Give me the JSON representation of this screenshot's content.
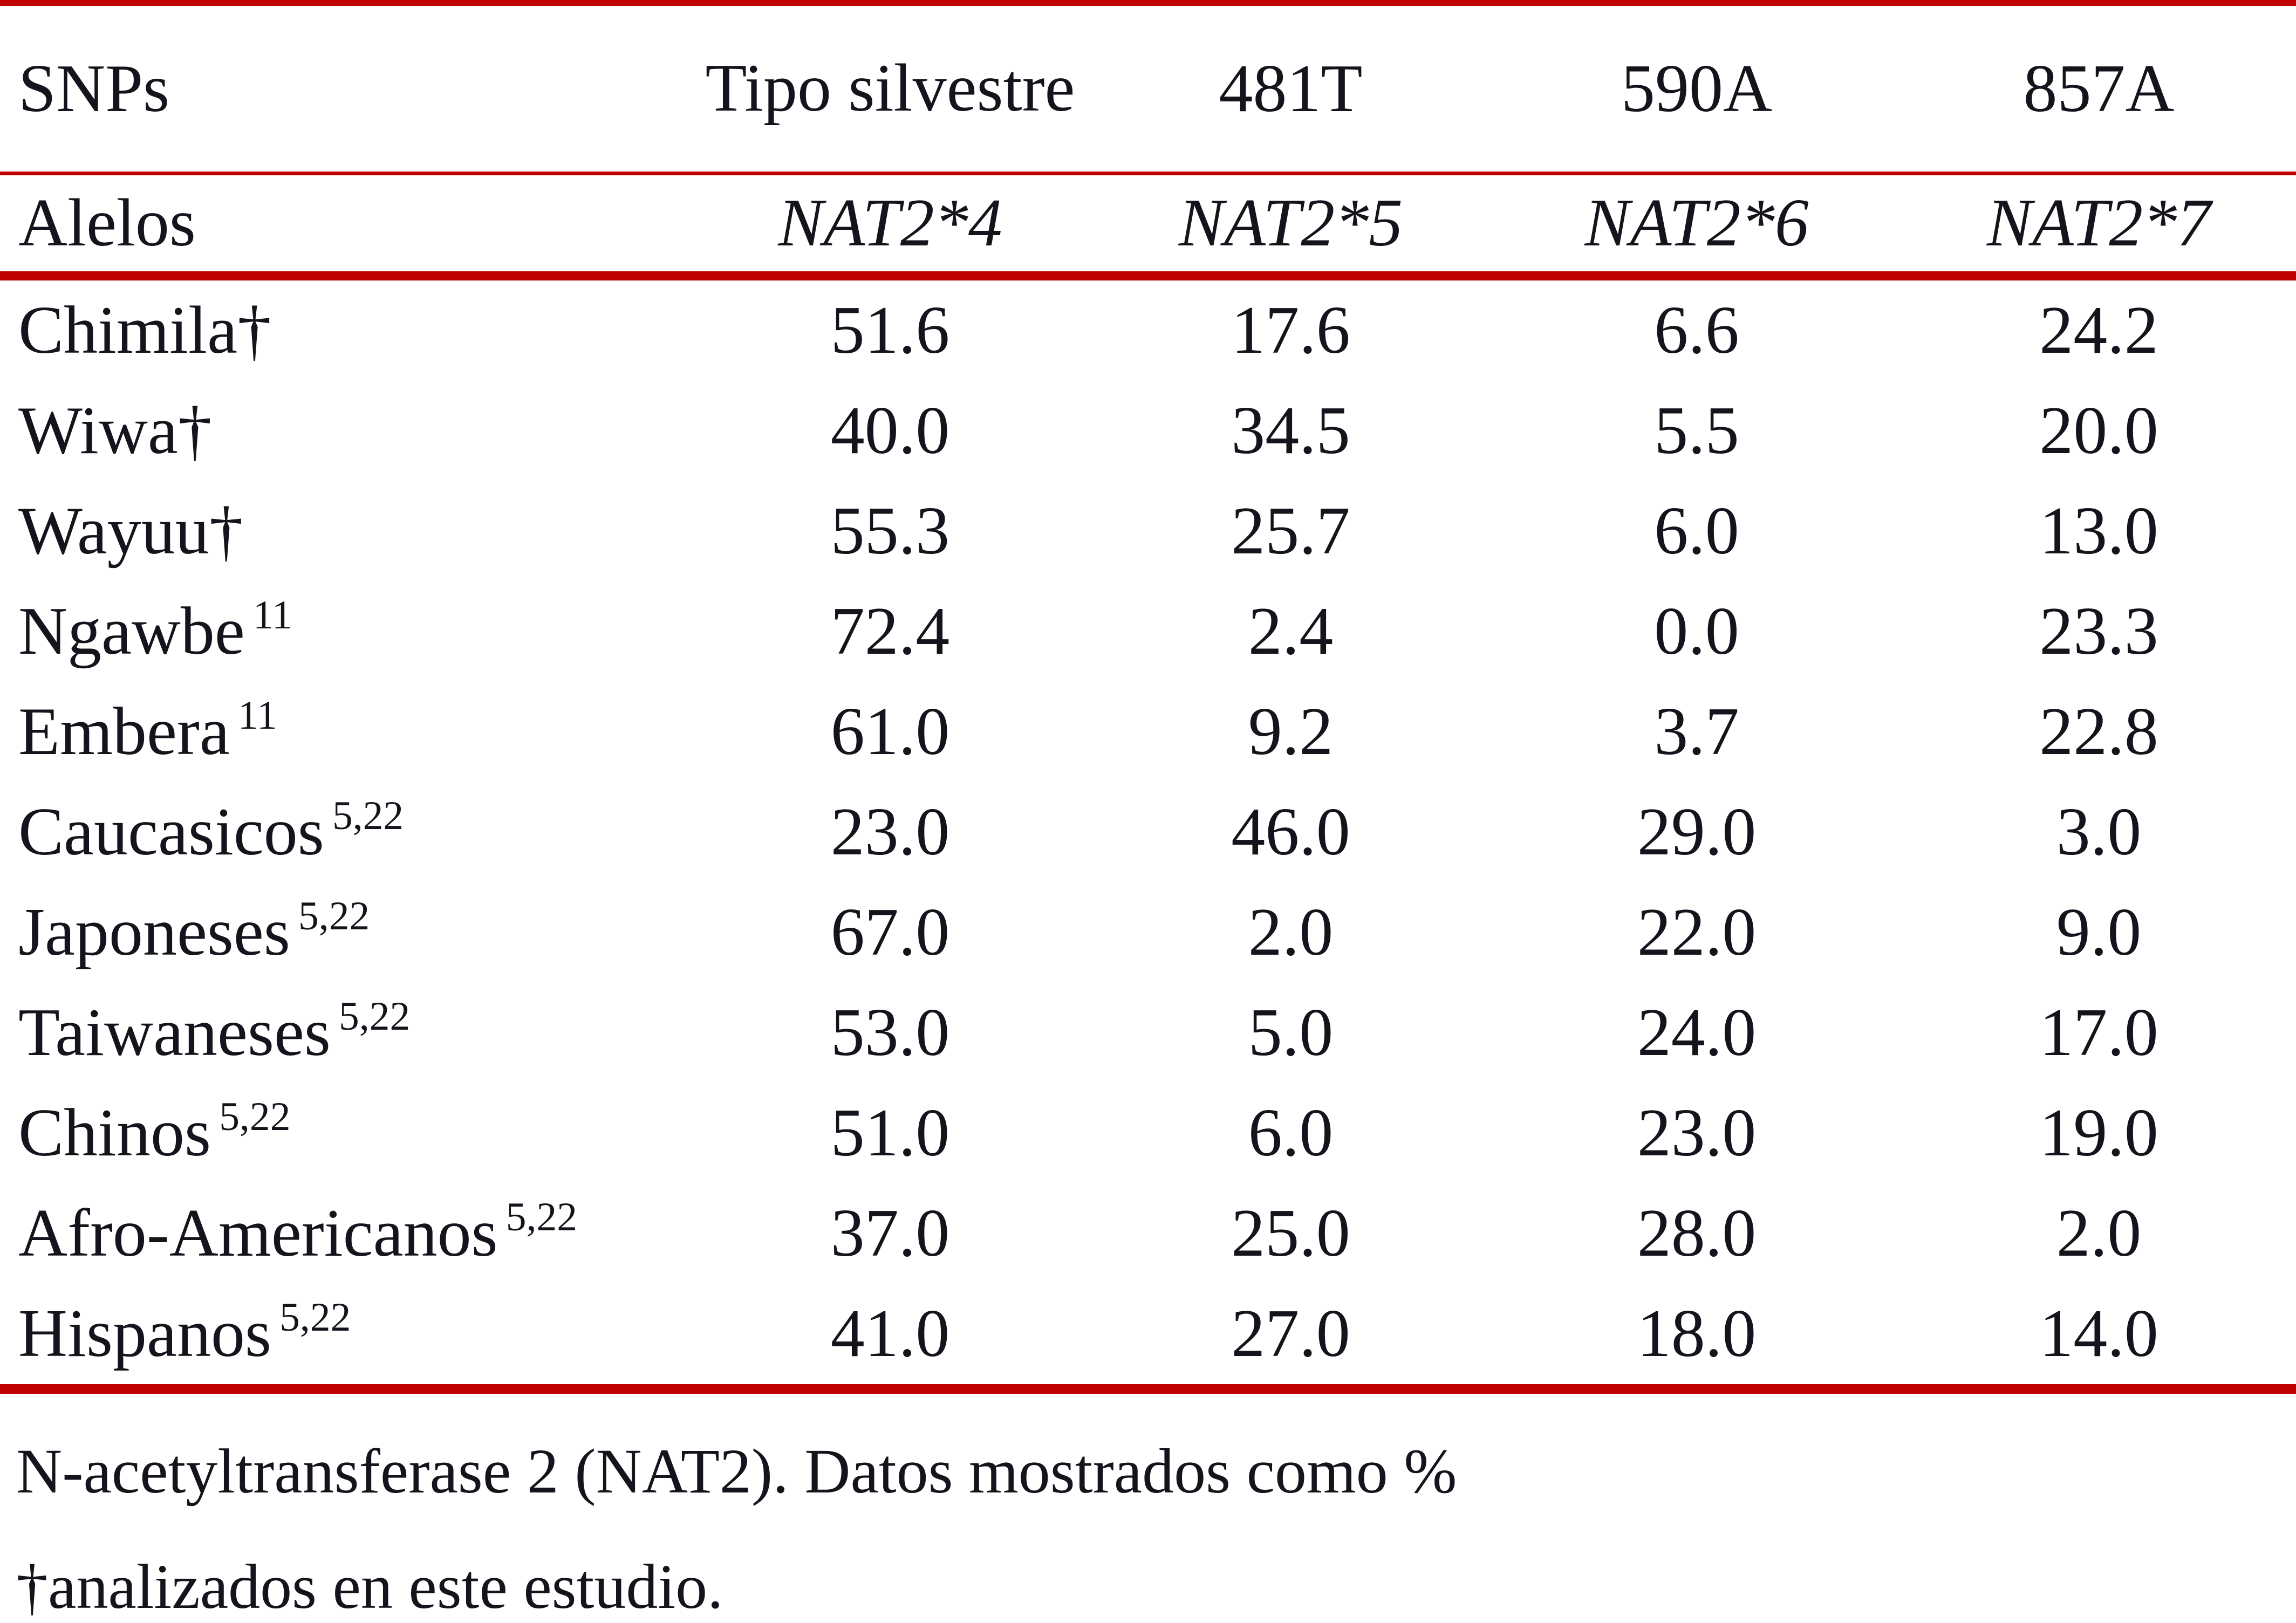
{
  "accent_red": "#c00000",
  "text_color": "#14141c",
  "table": {
    "header_row1": {
      "col0": "SNPs",
      "col1": "Tipo silvestre",
      "col2": "481T",
      "col3": "590A",
      "col4": "857A"
    },
    "header_row2": {
      "col0": "Alelos",
      "col1": "NAT2*4",
      "col2": "NAT2*5",
      "col3": "NAT2*6",
      "col4": "NAT2*7"
    },
    "rows": [
      {
        "name": "Chimila†",
        "sup": "",
        "values": [
          "51.6",
          "17.6",
          "6.6",
          "24.2"
        ]
      },
      {
        "name": "Wiwa†",
        "sup": "",
        "values": [
          "40.0",
          "34.5",
          "5.5",
          "20.0"
        ]
      },
      {
        "name": "Wayuu†",
        "sup": "",
        "values": [
          "55.3",
          "25.7",
          "6.0",
          "13.0"
        ]
      },
      {
        "name": "Ngawbe",
        "sup": "11",
        "values": [
          "72.4",
          "2.4",
          "0.0",
          "23.3"
        ]
      },
      {
        "name": "Embera",
        "sup": "11",
        "values": [
          "61.0",
          "9.2",
          "3.7",
          "22.8"
        ]
      },
      {
        "name": "Caucasicos",
        "sup": "5,22",
        "values": [
          "23.0",
          "46.0",
          "29.0",
          "3.0"
        ]
      },
      {
        "name": "Japoneses",
        "sup": "5,22",
        "values": [
          "67.0",
          "2.0",
          "22.0",
          "9.0"
        ]
      },
      {
        "name": "Taiwaneses",
        "sup": "5,22",
        "values": [
          "53.0",
          "5.0",
          "24.0",
          "17.0"
        ]
      },
      {
        "name": "Chinos",
        "sup": "5,22",
        "values": [
          "51.0",
          "6.0",
          "23.0",
          "19.0"
        ]
      },
      {
        "name": "Afro-Americanos",
        "sup": "5,22",
        "values": [
          "37.0",
          "25.0",
          "28.0",
          "2.0"
        ]
      },
      {
        "name": "Hispanos",
        "sup": "5,22",
        "values": [
          "41.0",
          "27.0",
          "18.0",
          "14.0"
        ]
      }
    ]
  },
  "footnotes": {
    "line1": "N-acetyltransferase 2 (NAT2). Datos mostrados como %",
    "line2": "†analizados en este estudio."
  }
}
